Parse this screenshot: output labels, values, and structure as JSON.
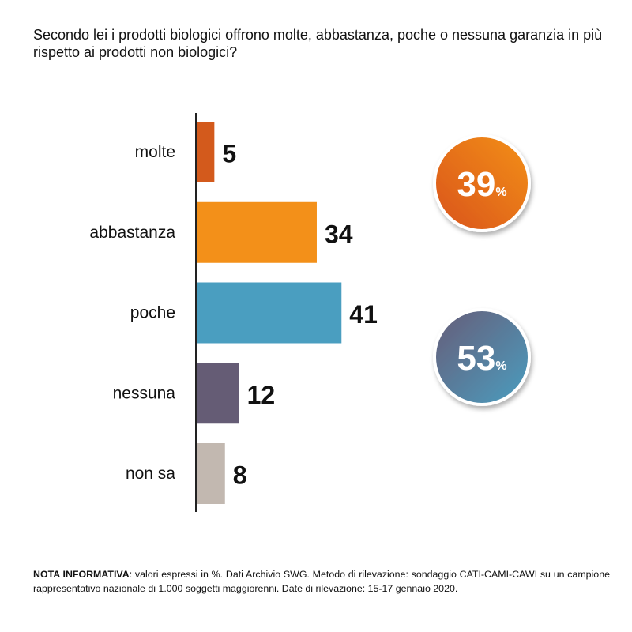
{
  "question": "Secondo lei i prodotti biologici offrono molte, abbastanza, poche o nessuna garanzia in più rispetto ai prodotti non biologici?",
  "chart_data": {
    "type": "bar",
    "orientation": "horizontal",
    "categories": [
      "molte",
      "abbastanza",
      "poche",
      "nessuna",
      "non sa"
    ],
    "values": [
      5,
      34,
      41,
      12,
      8
    ],
    "colors": [
      "#D35A1C",
      "#F39019",
      "#4A9EC0",
      "#655C75",
      "#C2B8B0"
    ],
    "unit": "%",
    "summary_badges": [
      {
        "value": "39",
        "unit": "%",
        "groups": [
          "molte",
          "abbastanza"
        ],
        "colors": [
          "#D9531A",
          "#F39019"
        ]
      },
      {
        "value": "53",
        "unit": "%",
        "groups": [
          "poche",
          "nessuna"
        ],
        "colors": [
          "#675C78",
          "#4A9EC0"
        ]
      }
    ]
  },
  "note": {
    "label": "NOTA INFORMATIVA",
    "text": ": valori espressi in %. Dati Archivio SWG. Metodo di rilevazione: sondaggio CATI-CAMI-CAWI su un campione rappresentativo nazionale di 1.000 soggetti maggiorenni. Date di rilevazione: 15-17 gennaio 2020."
  }
}
